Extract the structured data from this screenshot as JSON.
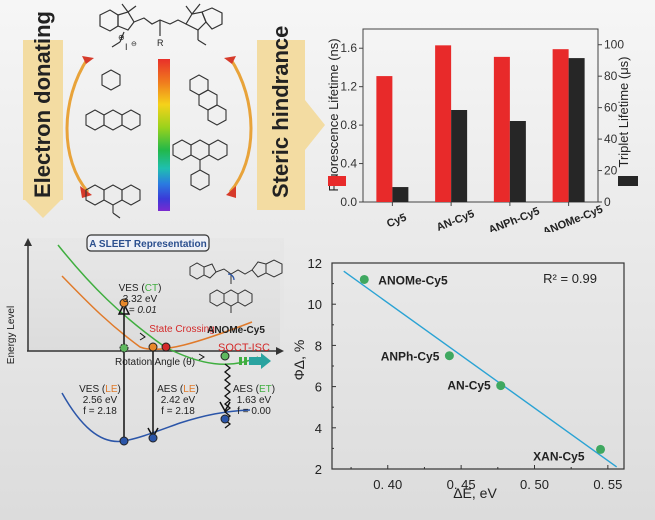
{
  "top_left": {
    "electron_label": "Electron donating",
    "steric_label": "Steric hindrance",
    "molecule_labels": {
      "counter_ion": "I",
      "substituent": "R"
    },
    "spectrum_colors": [
      "#e8302a",
      "#f07a1e",
      "#f5d21a",
      "#9ad21c",
      "#22b84a",
      "#1fbfb0",
      "#2a7ce0",
      "#3a3ad8",
      "#7a2ad0"
    ],
    "arrow_color": "#e8a33a"
  },
  "bar_chart": {
    "chart_data": {
      "type": "bar",
      "categories": [
        "Cy5",
        "AN-Cy5",
        "ANPh-Cy5",
        "ANOMe-Cy5"
      ],
      "series": [
        {
          "name": "Fluorescence Lifetime (ns)",
          "axis": "left",
          "color": "#e82a2a",
          "values": [
            1.31,
            1.63,
            1.51,
            1.59
          ]
        },
        {
          "name": "Triplet Lifetime (μs)",
          "axis": "right",
          "color": "#262626",
          "values": [
            9.5,
            58.5,
            51.5,
            91.5
          ]
        }
      ],
      "ylabel_left": "Fluorescence Lifetime (ns)",
      "ylabel_right": "Triplet Lifetime (μs)",
      "ylim_left": [
        0,
        1.8
      ],
      "ylim_right": [
        0,
        110
      ],
      "yticks_left": [
        "0.0",
        "0.4",
        "0.8",
        "1.2",
        "1.6"
      ],
      "yticks_right": [
        "0",
        "20",
        "40",
        "60",
        "80",
        "100"
      ],
      "legend": "inline-axis-labels"
    }
  },
  "sleet": {
    "title": "A SLEET Representation",
    "ylabel": "Energy Level",
    "xlabel": "Rotation Angle (θ)",
    "molecule_name": "ANOMe-Cy5",
    "state_crossing": "State Crossing",
    "soct_label": "SOCT-ISC",
    "ves_ct": {
      "prefix": "VES (",
      "tag": "CT",
      "suffix": ")",
      "energy": "3.32 eV",
      "f": "f = 0.01"
    },
    "ves_le": {
      "prefix": "VES (",
      "tag": "LE",
      "suffix": ")",
      "energy": "2.56 eV",
      "f": "f = 2.18"
    },
    "aes_le": {
      "prefix": "AES (",
      "tag": "LE",
      "suffix": ")",
      "energy": "2.42 eV",
      "f": "f = 2.18"
    },
    "aes_et": {
      "prefix": "AES (",
      "tag": "ET",
      "suffix": ")",
      "energy": "1.63 eV",
      "f": "f = 0.00"
    },
    "colors": {
      "ct": "#3fae3f",
      "le": "#e07a2a",
      "ground": "#2b55a8",
      "crossing": "#d42a2a"
    }
  },
  "scatter": {
    "chart_data": {
      "type": "scatter",
      "xlabel": "ΔE, eV",
      "ylabel": "ΦΔ, %",
      "xlim": [
        0.362,
        0.561
      ],
      "ylim": [
        2,
        12
      ],
      "xticks": [
        "0. 40",
        "0. 45",
        "0. 50",
        "0. 55"
      ],
      "xtick_values": [
        0.4,
        0.45,
        0.5,
        0.55
      ],
      "yticks": [
        "2",
        "4",
        "6",
        "8",
        "10",
        "12"
      ],
      "points": [
        {
          "label": "ANOMe-Cy5",
          "x": 0.384,
          "y": 11.2
        },
        {
          "label": "ANPh-Cy5",
          "x": 0.442,
          "y": 7.5
        },
        {
          "label": "AN-Cy5",
          "x": 0.477,
          "y": 6.05
        },
        {
          "label": "XAN-Cy5",
          "x": 0.545,
          "y": 2.95
        }
      ],
      "fit_line": {
        "x": [
          0.37,
          0.556
        ],
        "y": [
          11.6,
          2.1
        ]
      },
      "annotation": "R² = 0.99",
      "point_color": "#3fa860",
      "line_color": "#2aa3d4"
    }
  }
}
